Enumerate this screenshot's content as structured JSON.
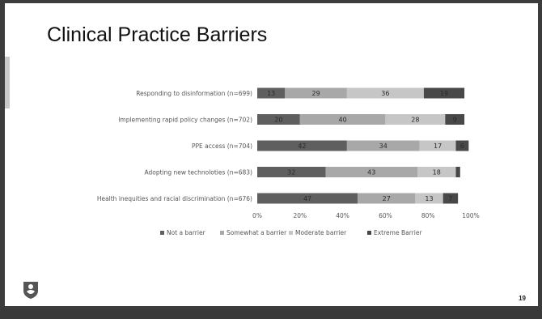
{
  "slide": {
    "title": "Clinical Practice Barriers",
    "number": "19"
  },
  "chart_data": {
    "type": "bar",
    "orientation": "horizontal",
    "stacked": true,
    "percent_stacked": true,
    "categories": [
      "Responding to disinformation (n=699)",
      "Implementing rapid policy changes (n=702)",
      "PPE access (n=704)",
      "Adopting new technoloties (n=683)",
      "Health inequities and racial discrimination (n=676)"
    ],
    "series": [
      {
        "name": "Not a barrier",
        "color": "#5f5f5f",
        "values": [
          13,
          20,
          42,
          32,
          47
        ]
      },
      {
        "name": "Somewhat a barrier",
        "color": "#a8a8a8",
        "values": [
          29,
          40,
          34,
          43,
          27
        ]
      },
      {
        "name": "Moderate barrier",
        "color": "#c6c6c6",
        "values": [
          36,
          28,
          17,
          18,
          13
        ]
      },
      {
        "name": "Extreme Barrier",
        "color": "#484848",
        "values": [
          19,
          9,
          6,
          2,
          7
        ]
      }
    ],
    "data_labels": [
      [
        "13",
        "29",
        "36",
        "19"
      ],
      [
        "20",
        "40",
        "28",
        "9"
      ],
      [
        "42",
        "34",
        "17",
        "6"
      ],
      [
        "32",
        "43",
        "18",
        ""
      ],
      [
        "47",
        "27",
        "13",
        "7"
      ]
    ],
    "x_ticks": [
      "0%",
      "20%",
      "40%",
      "60%",
      "80%",
      "100%"
    ],
    "xlim": [
      0,
      100
    ],
    "grid": false,
    "legend_position": "bottom"
  }
}
